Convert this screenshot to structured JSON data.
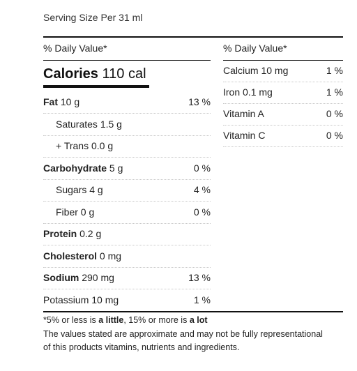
{
  "serving": "Serving Size Per 31 ml",
  "daily_value_header": "% Daily Value*",
  "calories": {
    "label": "Calories",
    "value": "110 cal"
  },
  "left_rows": [
    {
      "bold": "Fat",
      "rest": " 10 g",
      "pct": "13 %"
    },
    {
      "bold": "",
      "rest": "Saturates 1.5 g",
      "pct": ""
    },
    {
      "bold": "",
      "rest": "+ Trans 0.0 g",
      "pct": ""
    },
    {
      "bold": "Carbohydrate",
      "rest": " 5 g",
      "pct": "0 %"
    },
    {
      "bold": "",
      "rest": "Sugars 4 g",
      "pct": "4 %"
    },
    {
      "bold": "",
      "rest": "Fiber 0 g",
      "pct": "0 %"
    },
    {
      "bold": "Protein",
      "rest": " 0.2 g",
      "pct": ""
    },
    {
      "bold": "Cholesterol",
      "rest": " 0 mg",
      "pct": ""
    },
    {
      "bold": "Sodium",
      "rest": " 290 mg",
      "pct": "13 %"
    },
    {
      "bold": "",
      "rest": "Potassium 10 mg",
      "pct": "1 %"
    }
  ],
  "right_rows": [
    {
      "name": "Calcium 10 mg",
      "pct": "1 %"
    },
    {
      "name": "Iron 0.1 mg",
      "pct": "1 %"
    },
    {
      "name": "Vitamin A",
      "pct": "0 %"
    },
    {
      "name": "Vitamin C",
      "pct": "0 %"
    }
  ],
  "footnote": {
    "p1": "*5% or less is ",
    "little": "a little",
    "p2": ", 15% or more is ",
    "lot": "a lot",
    "line2": "The values stated are approximate and may not be fully representational",
    "line3": "of this products vitamins, nutrients and ingredients."
  }
}
